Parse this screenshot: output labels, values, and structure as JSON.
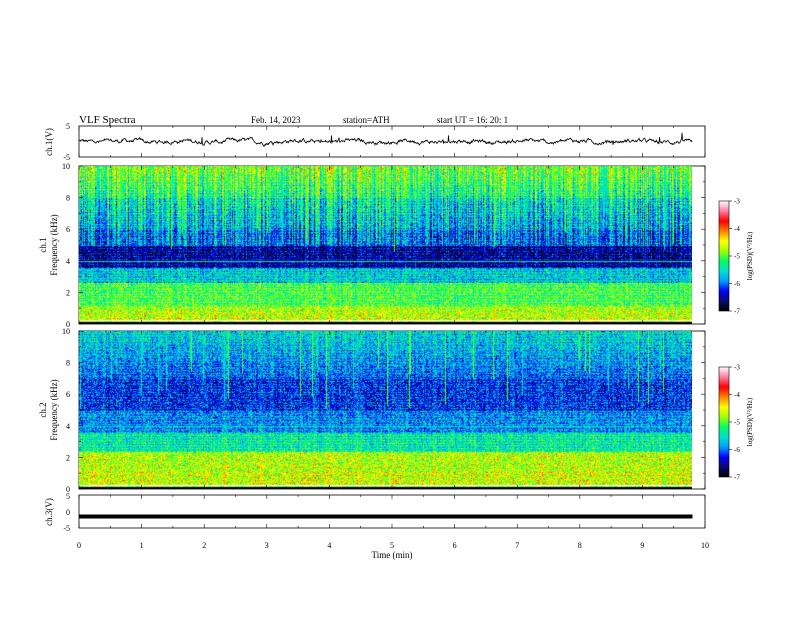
{
  "header": {
    "title": "VLF  Spectra",
    "date": "Feb. 14, 2023",
    "station": "station=ATH",
    "start_ut": "start  UT  =    16: 20: 1"
  },
  "chart_data": [
    {
      "type": "line",
      "panel": "ch1-waveform",
      "ylabel": "ch.1(V)",
      "ylim": [
        -5,
        5
      ],
      "yticks": [
        "5",
        "-5"
      ],
      "xlim": [
        0,
        10
      ],
      "x_extent_min": 9.8,
      "baseline_v": 0,
      "noise_amplitude_v": 0.8
    },
    {
      "type": "heatmap",
      "panel": "ch1-spectrogram",
      "ylabel": "ch.1\nFrequency (kHz)",
      "ylim": [
        0,
        10
      ],
      "yticks": [
        "0",
        "2",
        "4",
        "6",
        "8",
        "10"
      ],
      "xlim": [
        0,
        10
      ],
      "x_extent_min": 9.8,
      "colorbar": {
        "label": "log(PSD)(V²/Hz)",
        "range": [
          -7,
          -3
        ],
        "ticks": [
          "-3",
          "-4",
          "-5",
          "-6",
          "-7"
        ]
      }
    },
    {
      "type": "heatmap",
      "panel": "ch2-spectrogram",
      "ylabel": "ch.2\nFrequency (kHz)",
      "ylim": [
        0,
        10
      ],
      "yticks": [
        "0",
        "2",
        "4",
        "6",
        "8",
        "10"
      ],
      "xlim": [
        0,
        10
      ],
      "x_extent_min": 9.8,
      "colorbar": {
        "label": "log(PSD)(V²/Hz)",
        "range": [
          -7,
          -3
        ],
        "ticks": [
          "-3",
          "-4",
          "-5",
          "-6",
          "-7"
        ]
      }
    },
    {
      "type": "line",
      "panel": "ch3-waveform",
      "ylabel": "ch.3(V)",
      "ylim": [
        -5,
        5
      ],
      "yticks": [
        "5",
        "0",
        "-5"
      ],
      "xlim": [
        0,
        10
      ],
      "x_extent_min": 9.8,
      "baseline_v": -1.5
    }
  ],
  "xaxis": {
    "label": "Time  (min)",
    "ticks": [
      "0",
      "1",
      "2",
      "3",
      "4",
      "5",
      "6",
      "7",
      "8",
      "9",
      "10"
    ]
  },
  "colors": {
    "colormap": [
      "#000000",
      "#0a0a6e",
      "#0000ff",
      "#00a0ff",
      "#00e0d0",
      "#00ff60",
      "#a0ff00",
      "#ffff00",
      "#ff8000",
      "#ff0000",
      "#ff80a0",
      "#ffffff"
    ]
  }
}
